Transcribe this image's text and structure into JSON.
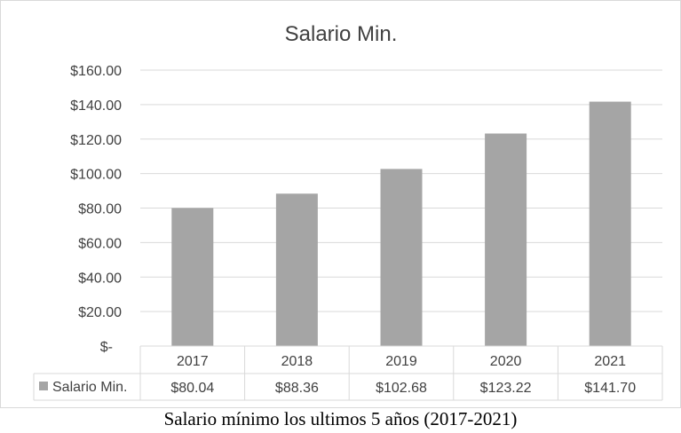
{
  "chart_data": {
    "type": "bar",
    "title": "Salario Min.",
    "categories": [
      "2017",
      "2018",
      "2019",
      "2020",
      "2021"
    ],
    "series": [
      {
        "name": "Salario Min.",
        "values": [
          80.04,
          88.36,
          102.68,
          123.22,
          141.7
        ]
      }
    ],
    "table_values": [
      "$80.04",
      "$88.36",
      "$102.68",
      "$123.22",
      "$141.70"
    ],
    "y_ticks": [
      "$-",
      "$20.00",
      "$40.00",
      "$60.00",
      "$80.00",
      "$100.00",
      "$120.00",
      "$140.00",
      "$160.00"
    ],
    "ylim": [
      0,
      160
    ],
    "grid": true,
    "legend": "data-table",
    "bar_color": "#a5a5a5",
    "grid_color": "#d9d9d9"
  },
  "caption": "Salario mínimo los ultimos 5 años (2017-2021)"
}
